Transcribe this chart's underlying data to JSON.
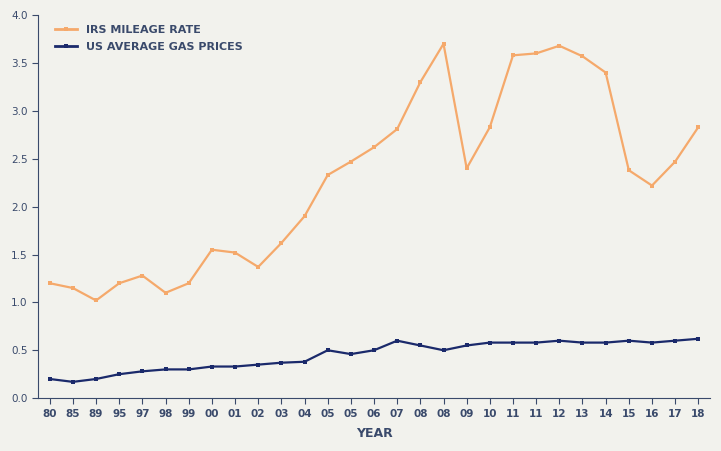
{
  "x_labels": [
    "80",
    "85",
    "89",
    "95",
    "97",
    "98",
    "99",
    "00",
    "01",
    "02",
    "03",
    "04",
    "05",
    "05",
    "06",
    "07",
    "08",
    "08",
    "09",
    "10",
    "11",
    "11",
    "12",
    "13",
    "14",
    "15",
    "16",
    "17",
    "18"
  ],
  "irs_mileage": [
    1.2,
    1.15,
    1.02,
    1.2,
    1.28,
    1.1,
    1.2,
    1.55,
    1.52,
    1.37,
    1.62,
    1.9,
    2.33,
    2.47,
    2.62,
    2.81,
    3.3,
    3.7,
    2.4,
    2.83,
    3.58,
    3.6,
    3.68,
    3.57,
    3.4,
    2.38,
    2.22,
    2.47,
    2.83
  ],
  "gas_prices": [
    0.2,
    0.17,
    0.2,
    0.25,
    0.28,
    0.3,
    0.3,
    0.33,
    0.33,
    0.35,
    0.37,
    0.38,
    0.5,
    0.46,
    0.5,
    0.6,
    0.55,
    0.5,
    0.55,
    0.58,
    0.58,
    0.58,
    0.6,
    0.58,
    0.58,
    0.6,
    0.58,
    0.6,
    0.62
  ],
  "irs_color": "#F5A96B",
  "gas_color": "#1B2A6B",
  "irs_label": "IRS MILEAGE RATE",
  "gas_label": "US AVERAGE GAS PRICES",
  "xlabel": "YEAR",
  "ylim": [
    0.0,
    4.0
  ],
  "yticks": [
    0.0,
    0.5,
    1.0,
    1.5,
    2.0,
    2.5,
    3.0,
    3.5,
    4.0
  ],
  "bg_color": "#F2F2ED",
  "linewidth": 1.6,
  "marker_size": 3.5,
  "tick_label_color": "#3A4A6B",
  "tick_fontsize": 7.5,
  "legend_fontsize": 8,
  "xlabel_fontsize": 9
}
